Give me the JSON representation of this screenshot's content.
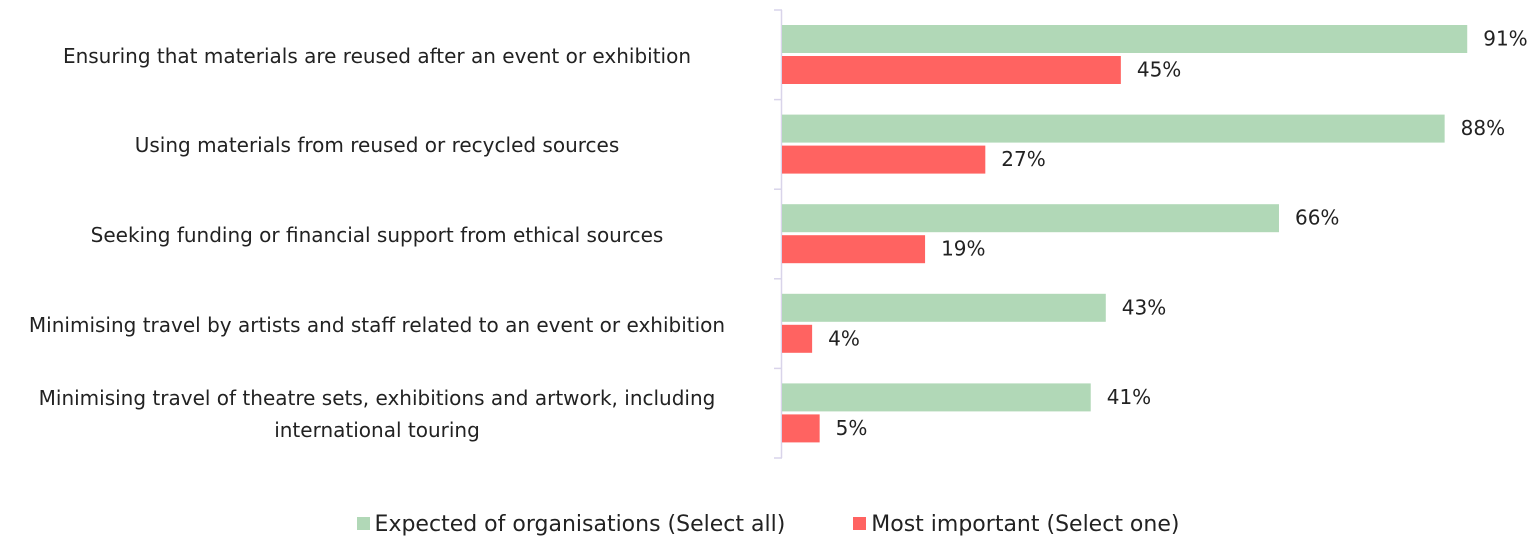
{
  "chart_data": {
    "type": "bar",
    "orientation": "horizontal",
    "categories": [
      "Ensuring that materials are reused after an event or exhibition",
      "Using materials from reused or recycled sources",
      "Seeking funding or financial support from ethical sources",
      "Minimising travel by artists and staff related to an event or exhibition",
      "Minimising travel of theatre sets, exhibitions and artwork, including international touring"
    ],
    "series": [
      {
        "name": "Expected of organisations (Select all)",
        "color": "#b1d8b7",
        "values": [
          91,
          88,
          66,
          43,
          41
        ],
        "value_labels": [
          "91%",
          "88%",
          "66%",
          "43%",
          "41%"
        ]
      },
      {
        "name": "Most important (Select one)",
        "color": "#ff6361",
        "values": [
          45,
          27,
          19,
          4,
          5
        ],
        "value_labels": [
          "45%",
          "27%",
          "19%",
          "4%",
          "5%"
        ]
      }
    ],
    "xlim": [
      0,
      100
    ],
    "legend": "bottom"
  }
}
